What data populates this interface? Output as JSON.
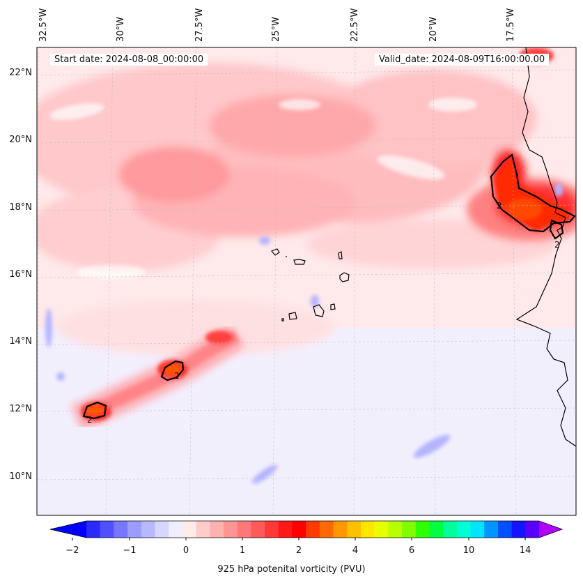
{
  "map": {
    "start_date": "Start date: 2024-08-08_00:00:00",
    "valid_date": "Valid_date: 2024-08-09T16:00:00.00",
    "lon_labels": [
      "32.5°W",
      "30°W",
      "27.5°W",
      "25°W",
      "22.5°W",
      "20°W",
      "17.5°W"
    ],
    "lat_labels": [
      "22°N",
      "20°N",
      "18°N",
      "16°N",
      "14°N",
      "12°N",
      "10°N"
    ],
    "contour_labels": [
      "2",
      "2",
      "2",
      "2"
    ]
  },
  "colorbar": {
    "label": "925 hPa potenital vorticity (PVU)",
    "ticks": [
      "−2",
      "−1",
      "0",
      "1",
      "2",
      "4",
      "6",
      "10",
      "14"
    ],
    "colors": [
      "#0000ff",
      "#2a2aff",
      "#5050ff",
      "#7676ff",
      "#9c9cff",
      "#b8b8ff",
      "#d6d6ff",
      "#eeeeff",
      "#ffeaea",
      "#ffcccc",
      "#ffb0b0",
      "#ff9494",
      "#ff7878",
      "#ff5a5a",
      "#ff3838",
      "#ff1818",
      "#ff0000",
      "#ff3a00",
      "#ff6a00",
      "#ff9800",
      "#ffc000",
      "#ffe600",
      "#e8ff00",
      "#b8ff00",
      "#80ff00",
      "#30ff00",
      "#00ff40",
      "#00ff9a",
      "#00ffd6",
      "#00e4ff",
      "#0096ff",
      "#0050ff",
      "#1414ff",
      "#5a00ff",
      "#b000ff"
    ]
  }
}
